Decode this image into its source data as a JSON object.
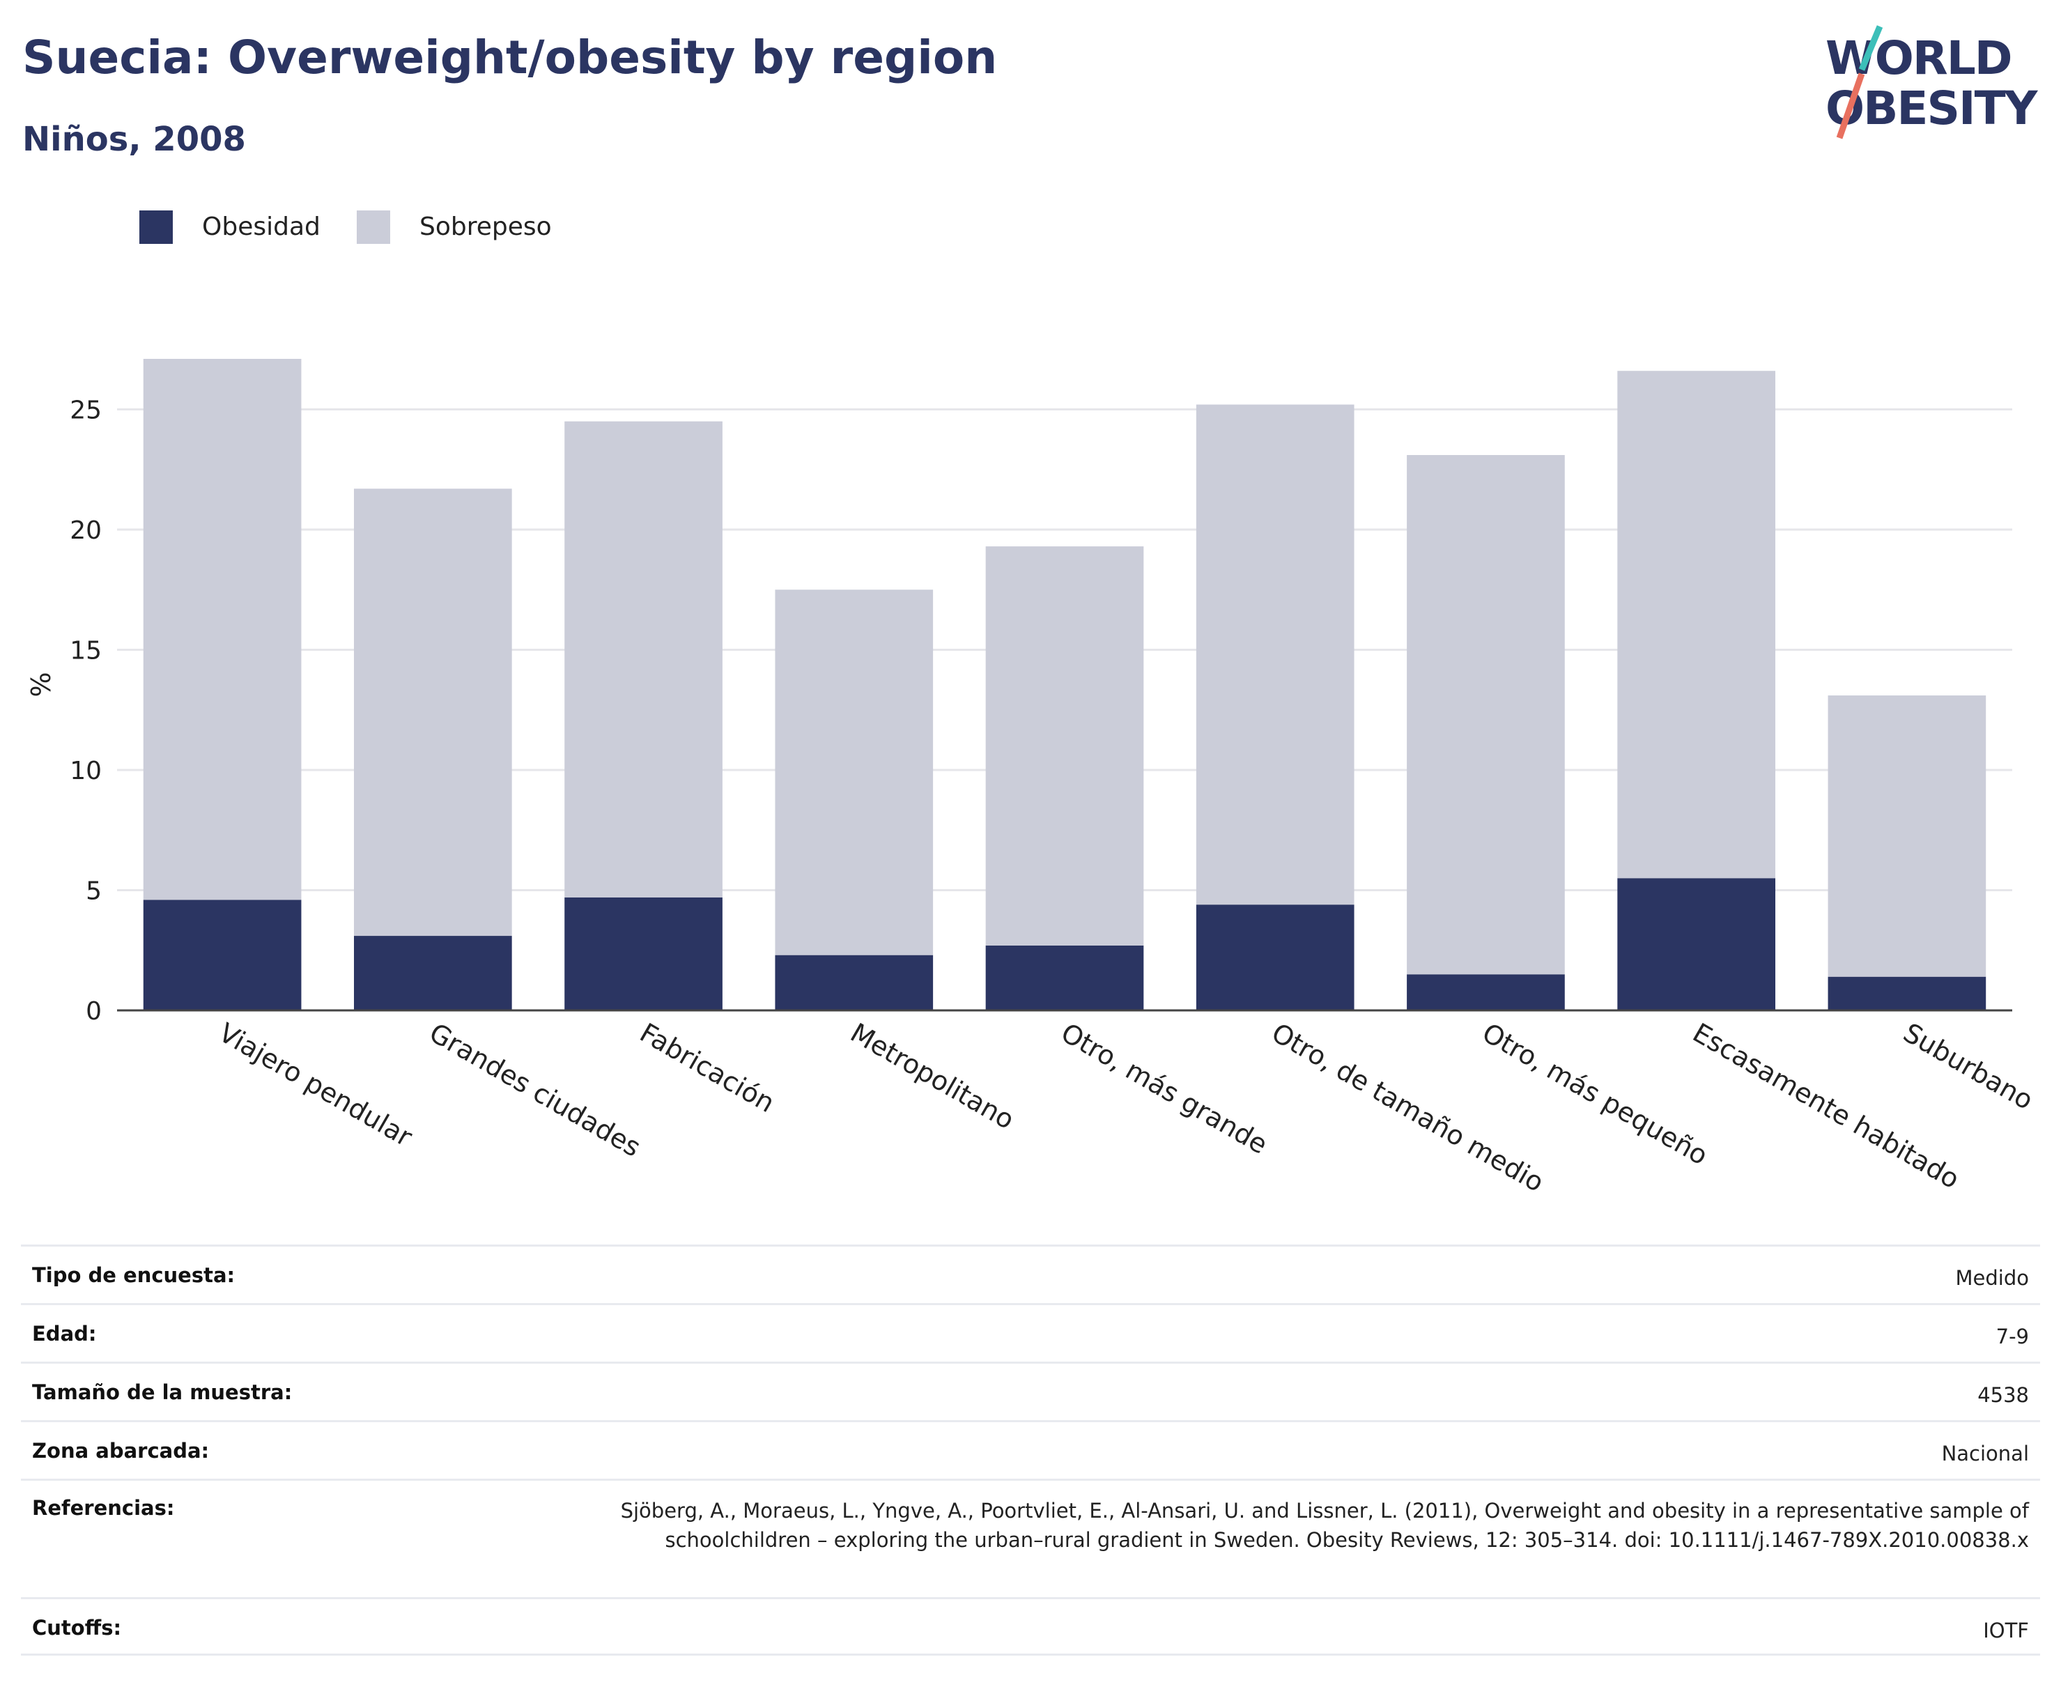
{
  "header": {
    "title": "Suecia: Overweight/obesity by region",
    "subtitle": "Niños, 2008"
  },
  "logo": {
    "line1": "WORLD",
    "line2": "OBESITY"
  },
  "colors": {
    "obesity": "#2b3562",
    "overweight": "#cbcdd9",
    "title": "#2b3562",
    "grid": "#e6e6ea",
    "axis": "#444444",
    "logo_teal": "#3cbfb9",
    "logo_coral": "#e8705f"
  },
  "legend": [
    {
      "label": "Obesidad",
      "color": "#2b3562"
    },
    {
      "label": "Sobrepeso",
      "color": "#cbcdd9"
    }
  ],
  "chart_data": {
    "type": "bar",
    "stacked": true,
    "categories": [
      "Viajero pendular",
      "Grandes ciudades",
      "Fabricación",
      "Metropolitano",
      "Otro, más grande",
      "Otro, de tamaño medio",
      "Otro, más pequeño",
      "Escasamente habitado",
      "Suburbano"
    ],
    "series": [
      {
        "name": "Obesidad",
        "values": [
          4.6,
          3.1,
          4.7,
          2.3,
          2.7,
          4.4,
          1.5,
          5.5,
          1.4
        ]
      },
      {
        "name": "Sobrepeso",
        "values": [
          22.5,
          18.6,
          19.8,
          15.2,
          16.6,
          20.8,
          21.6,
          21.1,
          11.7
        ]
      }
    ],
    "ylabel": "%",
    "xlabel": "",
    "ylim": [
      0,
      27.1
    ],
    "yticks": [
      0,
      5,
      10,
      15,
      20,
      25
    ],
    "grid": true,
    "legend_position": "top-left"
  },
  "info_table": [
    {
      "label": "Tipo de encuesta:",
      "value": "Medido"
    },
    {
      "label": "Edad:",
      "value": "7-9"
    },
    {
      "label": "Tamaño de la muestra:",
      "value": "4538"
    },
    {
      "label": "Zona abarcada:",
      "value": "Nacional"
    },
    {
      "label": "Referencias:",
      "value": "Sjöberg, A., Moraeus, L., Yngve, A., Poortvliet, E., Al-Ansari, U. and Lissner, L. (2011), Overweight and obesity in a representative sample of schoolchildren – exploring the urban–rural gradient in Sweden. Obesity Reviews, 12: 305–314. doi: 10.1111/j.1467-789X.2010.00838.x"
    },
    {
      "label": "Cutoffs:",
      "value": "IOTF"
    }
  ]
}
